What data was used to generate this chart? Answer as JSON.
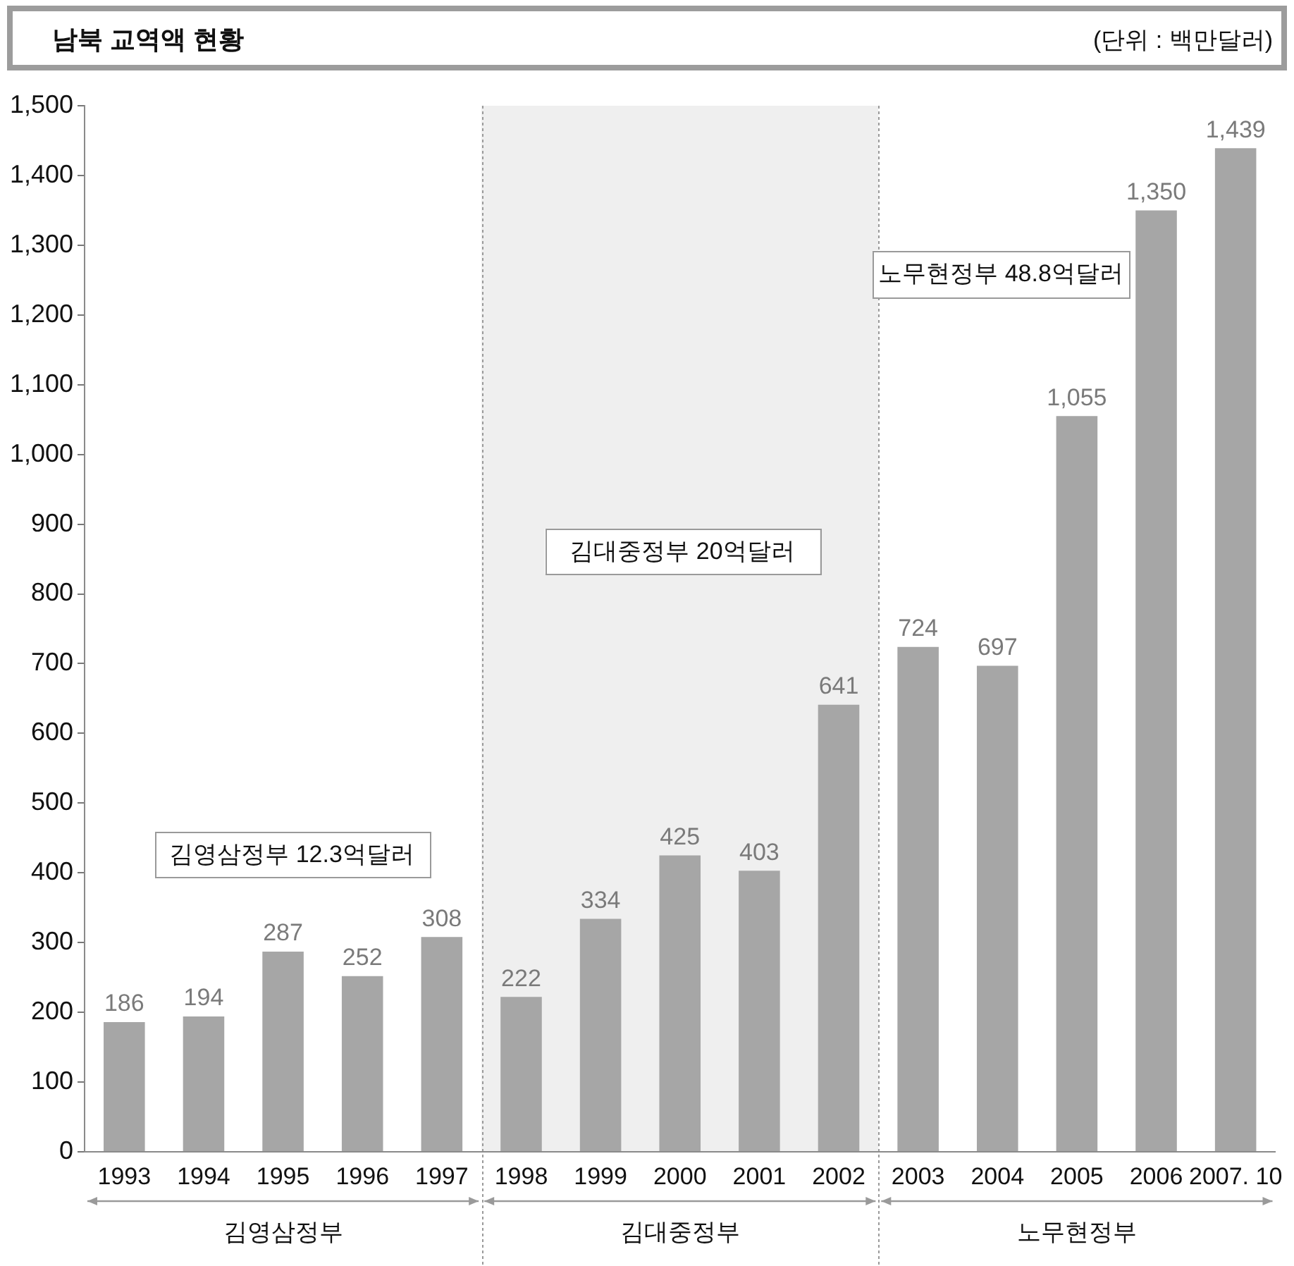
{
  "chart_data": {
    "type": "bar",
    "title": "남북 교역액 현황",
    "subtitle": "(단위 : 백만달러)",
    "categories": [
      "1993",
      "1994",
      "1995",
      "1996",
      "1997",
      "1998",
      "1999",
      "2000",
      "2001",
      "2002",
      "2003",
      "2004",
      "2005",
      "2006",
      "2007. 10"
    ],
    "values": [
      186,
      194,
      287,
      252,
      308,
      222,
      334,
      425,
      403,
      641,
      724,
      697,
      1055,
      1350,
      1439
    ],
    "color": "#a6a6a6",
    "value_labels": [
      "186",
      "194",
      "287",
      "252",
      "308",
      "222",
      "334",
      "425",
      "403",
      "641",
      "724",
      "697",
      "1,055",
      "1,350",
      "1,439"
    ],
    "ylim": [
      0,
      1500
    ],
    "yticks": [
      0,
      100,
      200,
      300,
      400,
      500,
      600,
      700,
      800,
      900,
      {
        "value": 1000,
        "label": "1,000"
      },
      {
        "value": 1100,
        "label": "1,100"
      },
      {
        "value": 1200,
        "label": "1,200"
      },
      {
        "value": 1300,
        "label": "1,300"
      },
      {
        "value": 1400,
        "label": "1,400"
      },
      {
        "value": 1500,
        "label": "1,500"
      }
    ],
    "bands": [
      {
        "axis": "x",
        "from": "1998",
        "to": "2002",
        "label": "김대중정부",
        "color": "#efefef"
      }
    ],
    "annotations": [
      "김영삼정부 12.3억달러",
      "김대중정부 20억달러",
      "노무현정부 48.8억달러",
      "김영삼정부",
      "노무현정부"
    ]
  }
}
